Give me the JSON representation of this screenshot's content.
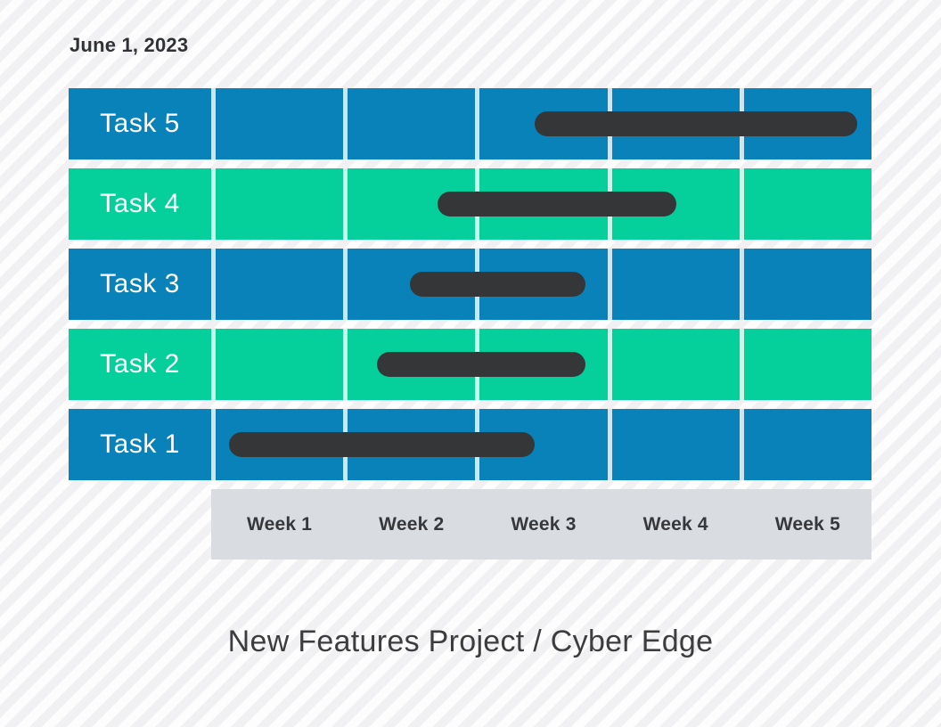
{
  "page": {
    "date_label": "June 1, 2023",
    "title": "New Features Project / Cyber Edge"
  },
  "colors": {
    "row_blue": "#0882b8",
    "row_green": "#05d09c",
    "bar": "#343638",
    "axis_band": "#d9dce1",
    "axis_text": "#36383c",
    "stripe_gray": "#f1f1f4",
    "stripe_white": "#fdfdfe",
    "task_text": "#ffffff",
    "date_text": "#303236",
    "title_text": "#3d3d3f"
  },
  "chart_data": {
    "type": "bar",
    "subtype": "gantt",
    "title": "New Features Project / Cyber Edge",
    "date_label": "June 1, 2023",
    "xlabel": "",
    "ylabel": "",
    "x_axis_labels": [
      "Week 1",
      "Week 2",
      "Week 3",
      "Week 4",
      "Week 5"
    ],
    "x_range_weeks": [
      1,
      6
    ],
    "grid": "column-separators-only",
    "legend": "none",
    "rows": [
      {
        "label": "Task 5",
        "row_color": "blue",
        "start_week": 3.43,
        "end_week": 5.89
      },
      {
        "label": "Task 4",
        "row_color": "green",
        "start_week": 2.69,
        "end_week": 4.51
      },
      {
        "label": "Task 3",
        "row_color": "blue",
        "start_week": 2.48,
        "end_week": 3.82
      },
      {
        "label": "Task 2",
        "row_color": "green",
        "start_week": 2.23,
        "end_week": 3.82
      },
      {
        "label": "Task 1",
        "row_color": "blue",
        "start_week": 1.1,
        "end_week": 3.43
      }
    ]
  }
}
